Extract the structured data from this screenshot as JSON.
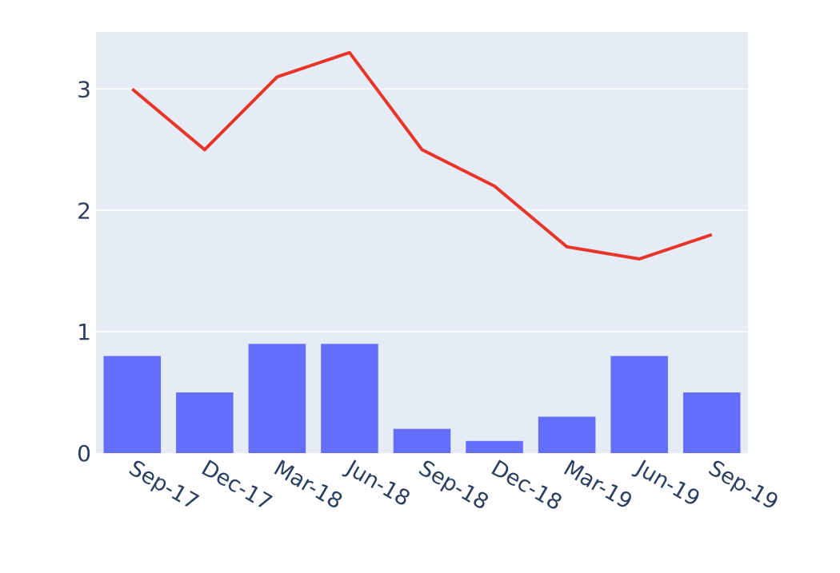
{
  "chart_data": {
    "type": "bar",
    "categories": [
      "Sep-17",
      "Dec-17",
      "Mar-18",
      "Jun-18",
      "Sep-18",
      "Dec-18",
      "Mar-19",
      "Jun-19",
      "Sep-19"
    ],
    "series": [
      {
        "type": "bar",
        "color": "#636efa",
        "values": [
          0.8,
          0.5,
          0.9,
          0.9,
          0.2,
          0.1,
          0.3,
          0.8,
          0.5
        ]
      },
      {
        "type": "line",
        "color": "#e8352a",
        "values": [
          3.0,
          2.5,
          3.1,
          3.3,
          2.5,
          2.2,
          1.7,
          1.6,
          1.8
        ]
      }
    ],
    "ylim": [
      0,
      3.47
    ],
    "yticks": [
      0,
      1,
      2,
      3
    ],
    "ytick_labels": [
      "0",
      "1",
      "2",
      "3"
    ],
    "grid": true,
    "plot_background": "#e5ecf6",
    "gridline_color": "#ffffff",
    "legend": "none"
  }
}
